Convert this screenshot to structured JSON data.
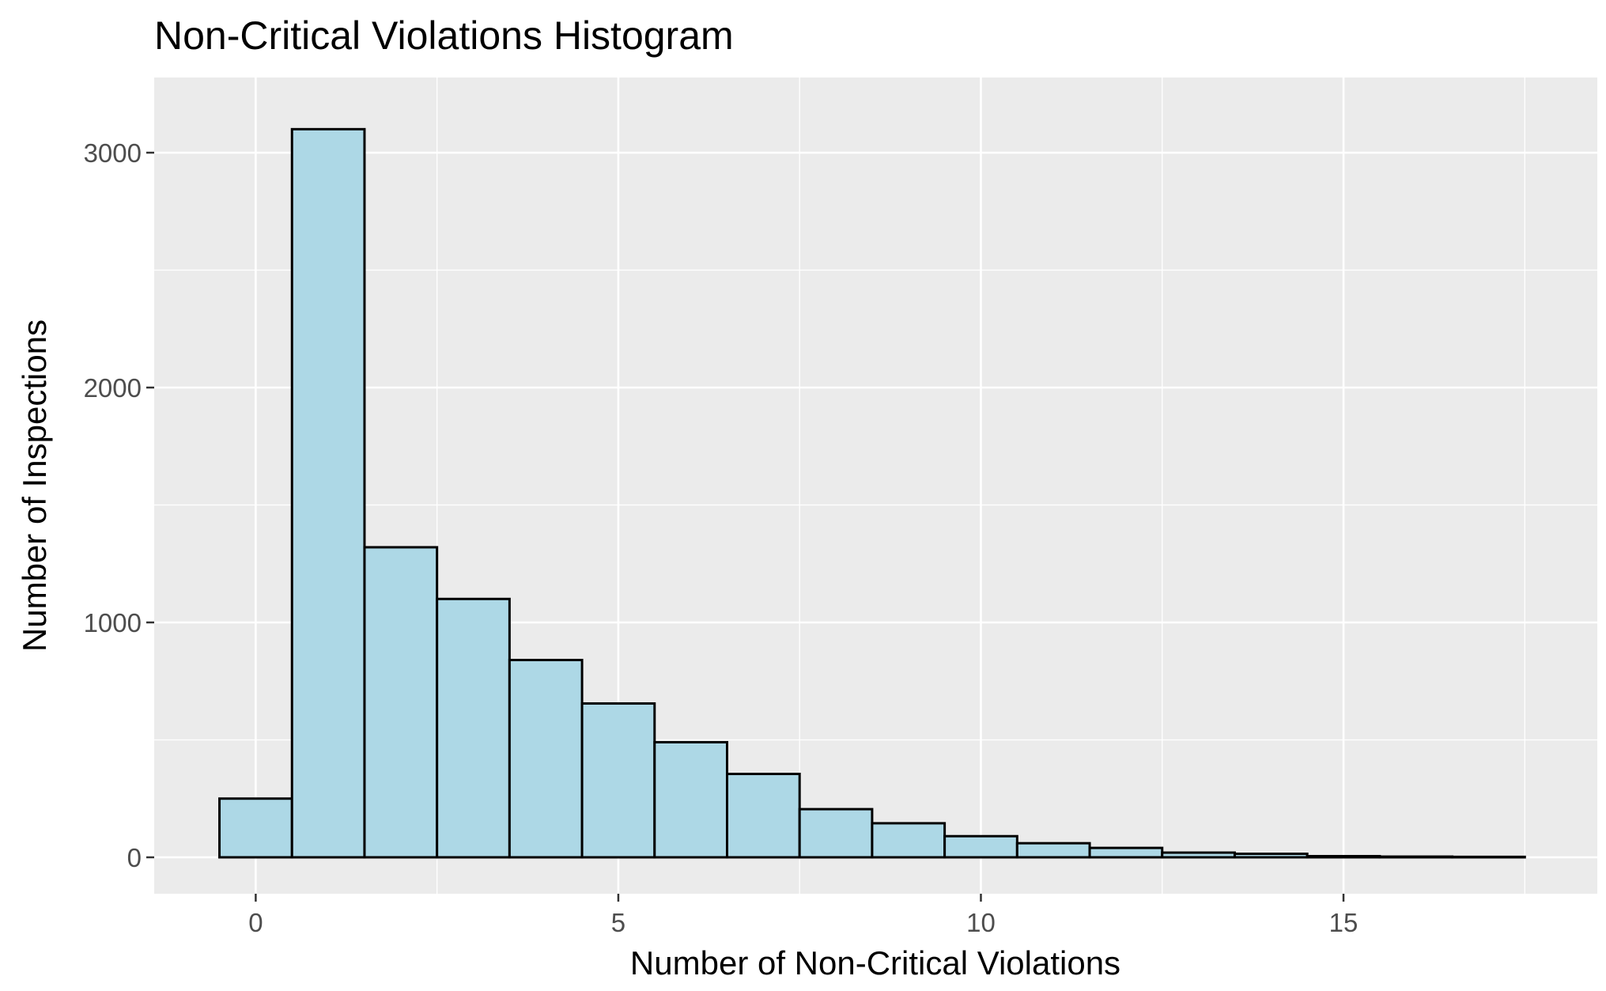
{
  "chart_data": {
    "type": "bar",
    "title": "Non-Critical Violations Histogram",
    "xlabel": "Number of Non-Critical Violations",
    "ylabel": "Number of Inspections",
    "x": [
      0,
      1,
      2,
      3,
      4,
      5,
      6,
      7,
      8,
      9,
      10,
      11,
      12,
      13,
      14,
      15,
      16,
      17
    ],
    "values": [
      250,
      3100,
      1320,
      1100,
      840,
      655,
      490,
      355,
      205,
      145,
      90,
      60,
      40,
      20,
      15,
      5,
      3,
      2
    ],
    "bin_width": 1,
    "xlim": [
      -1.4,
      18.5
    ],
    "ylim": [
      -155,
      3320
    ],
    "x_ticks": [
      0,
      5,
      10,
      15
    ],
    "y_ticks": [
      0,
      1000,
      2000,
      3000
    ],
    "grid": true,
    "colors": {
      "bar_fill": "#ADD8E6",
      "bar_outline": "#000000",
      "panel_background": "#EBEBEB",
      "grid": "#FFFFFF"
    }
  }
}
